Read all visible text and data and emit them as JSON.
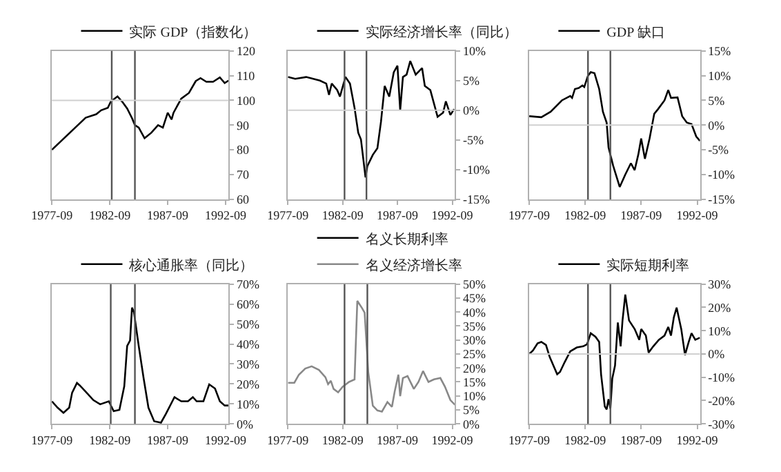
{
  "chart_data": [
    {
      "type": "line",
      "legend": "top",
      "xlim": [
        "1977-09",
        "1992-12"
      ],
      "xticks": [
        "1977-09",
        "1982-09",
        "1987-09",
        "1992-09"
      ],
      "ylim": [
        60,
        120
      ],
      "yticks": [
        60,
        70,
        80,
        90,
        100,
        110,
        120
      ],
      "x": [
        "1977-09",
        "1980-08",
        "1981-07",
        "1981-12",
        "1982-07",
        "1982-10",
        "1983-05",
        "1983-10",
        "1984-03",
        "1984-08",
        "1984-11",
        "1985-03",
        "1985-09",
        "1986-04",
        "1986-11",
        "1987-04",
        "1987-09",
        "1988-01",
        "1988-03",
        "1988-11",
        "1989-07",
        "1990-02",
        "1990-07",
        "1991-01",
        "1991-08",
        "1992-03",
        "1992-08",
        "1992-12"
      ],
      "series": [
        {
          "name": "实际 GDP（指数化）",
          "color": "#000000",
          "values": [
            80,
            93,
            94.4,
            96,
            97,
            99.5,
            101.6,
            99.4,
            96.7,
            92.8,
            90,
            89,
            84.7,
            86.9,
            90,
            89,
            95,
            92.3,
            95,
            100.7,
            103,
            107.8,
            109,
            107.5,
            107.5,
            109.3,
            107,
            108
          ]
        }
      ],
      "ref_lines": [
        {
          "axis": "x",
          "value": "1982-11",
          "color": "#555555"
        },
        {
          "axis": "x",
          "value": "1984-11",
          "color": "#555555"
        },
        {
          "axis": "y",
          "value": 100,
          "color": "#d0d0d0"
        }
      ]
    },
    {
      "type": "line",
      "legend": "top",
      "xlim": [
        "1977-09",
        "1992-12"
      ],
      "xticks": [
        "1977-09",
        "1982-09",
        "1987-09",
        "1992-09"
      ],
      "ylim": [
        -15,
        10
      ],
      "yticks": [
        {
          "value": -15,
          "label": "-15%"
        },
        {
          "value": -10,
          "label": "-10%"
        },
        {
          "value": -5,
          "label": "-5%"
        },
        {
          "value": 0,
          "label": "0%"
        },
        {
          "value": 5,
          "label": "5%"
        },
        {
          "value": 10,
          "label": "10%"
        }
      ],
      "x": [
        "1977-09",
        "1978-05",
        "1979-05",
        "1980-08",
        "1981-03",
        "1981-06",
        "1981-09",
        "1982-03",
        "1982-06",
        "1982-12",
        "1983-05",
        "1983-10",
        "1984-02",
        "1984-05",
        "1984-10",
        "1984-12",
        "1985-06",
        "1985-11",
        "1986-03",
        "1986-07",
        "1986-12",
        "1987-05",
        "1987-09",
        "1987-12",
        "1988-03",
        "1988-07",
        "1988-11",
        "1989-05",
        "1989-12",
        "1990-03",
        "1990-09",
        "1991-05",
        "1991-11",
        "1992-02",
        "1992-07",
        "1992-11"
      ],
      "series": [
        {
          "name": "实际经济增长率（同比）",
          "color": "#000000",
          "values": [
            5.6,
            5.3,
            5.6,
            5.0,
            4.5,
            2.6,
            4.5,
            3.4,
            2.3,
            5.6,
            4.5,
            0.4,
            -3.8,
            -4.9,
            -11.3,
            -9.4,
            -7.5,
            -6.4,
            -1.9,
            4.1,
            2.3,
            6.4,
            7.5,
            0,
            5.6,
            6,
            8.3,
            6,
            7.1,
            4.1,
            3.4,
            -1.1,
            -0.4,
            1.5,
            -0.8,
            0.2
          ]
        }
      ],
      "ref_lines": [
        {
          "axis": "x",
          "value": "1982-11",
          "color": "#555555"
        },
        {
          "axis": "x",
          "value": "1984-11",
          "color": "#555555"
        },
        {
          "axis": "y",
          "value": 0,
          "color": "#d0d0d0"
        }
      ]
    },
    {
      "type": "line",
      "legend": "top",
      "xlim": [
        "1977-09",
        "1992-12"
      ],
      "xticks": [
        "1977-09",
        "1982-09",
        "1987-09",
        "1992-09"
      ],
      "ylim": [
        -15,
        15
      ],
      "yticks": [
        {
          "value": -15,
          "label": "-15%"
        },
        {
          "value": -10,
          "label": "-10%"
        },
        {
          "value": -5,
          "label": "-5%"
        },
        {
          "value": 0,
          "label": "0%"
        },
        {
          "value": 5,
          "label": "5%"
        },
        {
          "value": 10,
          "label": "10%"
        },
        {
          "value": 15,
          "label": "15%"
        }
      ],
      "x": [
        "1977-09",
        "1978-10",
        "1979-08",
        "1980-08",
        "1981-05",
        "1981-07",
        "1981-10",
        "1982-02",
        "1982-06",
        "1982-08",
        "1982-12",
        "1983-03",
        "1983-07",
        "1983-12",
        "1984-04",
        "1984-08",
        "1984-10",
        "1985-03",
        "1985-10",
        "1986-04",
        "1986-10",
        "1987-02",
        "1987-06",
        "1987-09",
        "1988-01",
        "1988-06",
        "1988-11",
        "1989-03",
        "1989-10",
        "1990-02",
        "1990-05",
        "1990-12",
        "1991-05",
        "1991-10",
        "1992-03",
        "1992-08",
        "1992-12"
      ],
      "series": [
        {
          "name": "GDP 缺口",
          "color": "#000000",
          "values": [
            1.8,
            1.6,
            2.7,
            5,
            5.9,
            5.5,
            7.3,
            7.5,
            8,
            7.7,
            10,
            10.7,
            10.5,
            7.3,
            2.7,
            0.5,
            -4.5,
            -8.2,
            -12.5,
            -10,
            -7.7,
            -9.1,
            -5.9,
            -2.7,
            -6.8,
            -2.7,
            2.3,
            3.2,
            5,
            7.1,
            5.5,
            5.6,
            1.8,
            0.5,
            0.2,
            -2.3,
            -3.2
          ]
        }
      ],
      "ref_lines": [
        {
          "axis": "x",
          "value": "1982-12",
          "color": "#555555"
        },
        {
          "axis": "x",
          "value": "1984-12",
          "color": "#555555"
        },
        {
          "axis": "y",
          "value": 0,
          "color": "#d0d0d0"
        }
      ]
    },
    {
      "type": "line",
      "legend": "top",
      "xlim": [
        "1977-09",
        "1992-12"
      ],
      "xticks": [
        "1977-09",
        "1982-09",
        "1987-09",
        "1992-09"
      ],
      "ylim": [
        0,
        70
      ],
      "yticks": [
        {
          "value": 0,
          "label": "0%"
        },
        {
          "value": 10,
          "label": "10%"
        },
        {
          "value": 20,
          "label": "20%"
        },
        {
          "value": 30,
          "label": "30%"
        },
        {
          "value": 40,
          "label": "40%"
        },
        {
          "value": 50,
          "label": "50%"
        },
        {
          "value": 60,
          "label": "60%"
        },
        {
          "value": 70,
          "label": "70%"
        }
      ],
      "x": [
        "1977-09",
        "1978-03",
        "1978-09",
        "1979-03",
        "1979-06",
        "1979-11",
        "1980-02",
        "1980-09",
        "1981-04",
        "1981-11",
        "1982-08",
        "1983-01",
        "1983-07",
        "1983-12",
        "1984-03",
        "1984-06",
        "1984-08",
        "1984-10",
        "1985-03",
        "1985-08",
        "1986-01",
        "1986-07",
        "1987-02",
        "1987-07",
        "1988-04",
        "1988-11",
        "1989-06",
        "1989-11",
        "1990-03",
        "1990-10",
        "1991-04",
        "1991-10",
        "1992-03",
        "1992-08",
        "1992-12"
      ],
      "series": [
        {
          "name": "核心通胀率（同比）",
          "color": "#000000",
          "values": [
            11.3,
            8.1,
            5.5,
            8.1,
            15.6,
            20.5,
            19.2,
            15.6,
            11.9,
            9.8,
            11.3,
            6.4,
            7,
            18.8,
            39,
            41.8,
            58.2,
            56,
            39,
            23,
            8.1,
            1.3,
            0.6,
            4.9,
            13.4,
            11.3,
            11.3,
            13.4,
            11.3,
            11.3,
            19.8,
            17.7,
            11.3,
            9.2,
            9.2
          ]
        }
      ],
      "ref_lines": [
        {
          "axis": "x",
          "value": "1982-10",
          "color": "#555555"
        },
        {
          "axis": "x",
          "value": "1984-11",
          "color": "#555555"
        }
      ]
    },
    {
      "type": "line",
      "legend": "top",
      "xlim": [
        "1977-09",
        "1992-12"
      ],
      "xticks": [
        "1977-09",
        "1982-09",
        "1987-09",
        "1992-09"
      ],
      "ylim": [
        0,
        50
      ],
      "yticks": [
        {
          "value": 0,
          "label": "0%"
        },
        {
          "value": 5,
          "label": "5%"
        },
        {
          "value": 10,
          "label": "10%"
        },
        {
          "value": 15,
          "label": "15%"
        },
        {
          "value": 20,
          "label": "20%"
        },
        {
          "value": 25,
          "label": "25%"
        },
        {
          "value": 30,
          "label": "30%"
        },
        {
          "value": 35,
          "label": "35%"
        },
        {
          "value": 40,
          "label": "40%"
        },
        {
          "value": 45,
          "label": "45%"
        },
        {
          "value": 50,
          "label": "50%"
        }
      ],
      "x": [
        "1977-09",
        "1978-04",
        "1978-09",
        "1979-04",
        "1979-11",
        "1980-07",
        "1981-02",
        "1981-05",
        "1981-08",
        "1981-11",
        "1982-04",
        "1982-09",
        "1983-04",
        "1983-10",
        "1984-01",
        "1984-06",
        "1984-09",
        "1985-01",
        "1985-06",
        "1985-11",
        "1986-04",
        "1986-10",
        "1987-03",
        "1987-06",
        "1987-10",
        "1987-12",
        "1988-03",
        "1988-08",
        "1989-03",
        "1989-08",
        "1990-01",
        "1990-07",
        "1991-01",
        "1991-08",
        "1992-01",
        "1992-07",
        "1992-12"
      ],
      "series": [
        {
          "name": "名义长期利率",
          "color": "#000000",
          "values": [
            null,
            null,
            null,
            null,
            null,
            null,
            null,
            null,
            null,
            null,
            null,
            null,
            null,
            null,
            null,
            null,
            null,
            null,
            null,
            null,
            null,
            null,
            null,
            null,
            null,
            null,
            null,
            null,
            null,
            null,
            null,
            null,
            null,
            null,
            null,
            null,
            null
          ]
        },
        {
          "name": "名义经济增长率",
          "color": "#888888",
          "values": [
            14.7,
            14.7,
            17.6,
            19.8,
            20.6,
            19.3,
            16.7,
            14.2,
            15.4,
            12.5,
            11.3,
            13.3,
            15,
            15.9,
            44,
            41.5,
            39.8,
            18.4,
            6.5,
            4.8,
            4.4,
            7.8,
            6.1,
            11.6,
            17.6,
            9.9,
            16.4,
            17.1,
            12.5,
            15,
            18.9,
            15,
            15.9,
            16.4,
            13.3,
            8.5,
            6.8
          ]
        }
      ],
      "ref_lines": [
        {
          "axis": "x",
          "value": "1982-11",
          "color": "#555555"
        },
        {
          "axis": "x",
          "value": "1984-12",
          "color": "#555555"
        }
      ]
    },
    {
      "type": "line",
      "legend": "top",
      "xlim": [
        "1977-09",
        "1992-12"
      ],
      "xticks": [
        "1977-09",
        "1982-09",
        "1987-09",
        "1992-09"
      ],
      "ylim": [
        -30,
        30
      ],
      "yticks": [
        {
          "value": -30,
          "label": "-30%"
        },
        {
          "value": -20,
          "label": "-20%"
        },
        {
          "value": -10,
          "label": "-10%"
        },
        {
          "value": 0,
          "label": "0%"
        },
        {
          "value": 10,
          "label": "10%"
        },
        {
          "value": 20,
          "label": "20%"
        },
        {
          "value": 30,
          "label": "30%"
        }
      ],
      "x": [
        "1977-09",
        "1978-01",
        "1978-06",
        "1978-10",
        "1979-03",
        "1979-07",
        "1979-12",
        "1980-03",
        "1980-06",
        "1980-11",
        "1981-05",
        "1981-12",
        "1982-07",
        "1982-11",
        "1983-03",
        "1983-08",
        "1983-12",
        "1984-02",
        "1984-06",
        "1984-08",
        "1984-10",
        "1984-12",
        "1985-02",
        "1985-05",
        "1985-08",
        "1985-11",
        "1986-01",
        "1986-04",
        "1986-08",
        "1987-02",
        "1987-07",
        "1987-09",
        "1988-02",
        "1988-05",
        "1988-10",
        "1989-04",
        "1989-10",
        "1990-02",
        "1990-05",
        "1990-08",
        "1990-11",
        "1991-04",
        "1991-08",
        "1991-12",
        "1992-03",
        "1992-07",
        "1992-12"
      ],
      "series": [
        {
          "name": "实际短期利率",
          "color": "#000000",
          "values": [
            0,
            1.5,
            4.6,
            5.2,
            3.9,
            -1.3,
            -5.9,
            -8.7,
            -7.7,
            -3.5,
            1.1,
            2.8,
            3.3,
            4.2,
            8.9,
            7.4,
            5.2,
            -8.7,
            -22.5,
            -23.8,
            -19.4,
            -23.4,
            -10.5,
            -5,
            13.5,
            3.3,
            14.4,
            25.5,
            14.4,
            10.7,
            6.1,
            10.7,
            7.9,
            0.6,
            3.3,
            6.1,
            7.9,
            11.6,
            7.9,
            15.7,
            19.9,
            10.7,
            -0.4,
            5.2,
            8.9,
            6.1,
            7
          ]
        }
      ],
      "ref_lines": [
        {
          "axis": "x",
          "value": "1982-12",
          "color": "#555555"
        },
        {
          "axis": "x",
          "value": "1984-12",
          "color": "#555555"
        },
        {
          "axis": "y",
          "value": 0,
          "color": "#d0d0d0"
        }
      ]
    }
  ]
}
